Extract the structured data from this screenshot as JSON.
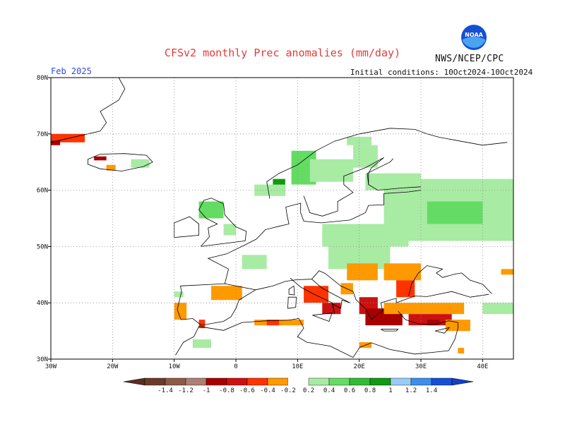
{
  "header": {
    "title": "CFSv2 monthly Prec anomalies (mm/day)",
    "agency": "NWS/NCEP/CPC",
    "logo_text": "NOAA",
    "month": "Feb 2025",
    "init": "Initial conditions: 10Oct2024-10Oct2024"
  },
  "map": {
    "lon_range": [
      -30,
      45
    ],
    "lat_range": [
      30,
      80
    ],
    "lat_ticks": [
      {
        "value": 80,
        "label": "80N"
      },
      {
        "value": 70,
        "label": "70N"
      },
      {
        "value": 60,
        "label": "60N"
      },
      {
        "value": 50,
        "label": "50N"
      },
      {
        "value": 40,
        "label": "40N"
      },
      {
        "value": 30,
        "label": "30N"
      }
    ],
    "lon_ticks": [
      {
        "value": -30,
        "label": "30W"
      },
      {
        "value": -20,
        "label": "20W"
      },
      {
        "value": -10,
        "label": "10W"
      },
      {
        "value": 0,
        "label": "0"
      },
      {
        "value": 10,
        "label": "10E"
      },
      {
        "value": 20,
        "label": "20E"
      },
      {
        "value": 30,
        "label": "30E"
      },
      {
        "value": 40,
        "label": "40E"
      }
    ],
    "grid": "dotted",
    "anomaly_regions": [
      {
        "lon": [
          -30,
          -24.5
        ],
        "lat": [
          68.5,
          70
        ],
        "level": -0.5
      },
      {
        "lon": [
          -30,
          -28.5
        ],
        "lat": [
          68,
          68.8
        ],
        "level": -0.9
      },
      {
        "lon": [
          -23,
          -21
        ],
        "lat": [
          65.3,
          66
        ],
        "level": -0.9
      },
      {
        "lon": [
          -21,
          -19.5
        ],
        "lat": [
          63.5,
          64.5
        ],
        "level": -0.3
      },
      {
        "lon": [
          -17,
          -14
        ],
        "lat": [
          64,
          65.5
        ],
        "level": 0.3
      },
      {
        "lon": [
          9,
          13
        ],
        "lat": [
          61,
          67
        ],
        "level": 0.5
      },
      {
        "lon": [
          6,
          8
        ],
        "lat": [
          59,
          62
        ],
        "level": 0.9
      },
      {
        "lon": [
          12,
          19
        ],
        "lat": [
          61.5,
          65.5
        ],
        "level": 0.3
      },
      {
        "lon": [
          19,
          23
        ],
        "lat": [
          64,
          68
        ],
        "level": 0.3
      },
      {
        "lon": [
          21,
          30
        ],
        "lat": [
          60,
          63
        ],
        "level": 0.3
      },
      {
        "lon": [
          24,
          45
        ],
        "lat": [
          51,
          62
        ],
        "level": 0.3
      },
      {
        "lon": [
          31,
          40
        ],
        "lat": [
          54,
          58
        ],
        "level": 0.5
      },
      {
        "lon": [
          -6,
          -2
        ],
        "lat": [
          55,
          58
        ],
        "level": 0.5
      },
      {
        "lon": [
          -2,
          0
        ],
        "lat": [
          52,
          54
        ],
        "level": 0.3
      },
      {
        "lon": [
          14,
          28
        ],
        "lat": [
          50,
          54
        ],
        "level": 0.3
      },
      {
        "lon": [
          15,
          25
        ],
        "lat": [
          46,
          50
        ],
        "level": 0.3
      },
      {
        "lon": [
          1,
          5
        ],
        "lat": [
          46,
          48.5
        ],
        "level": 0.3
      },
      {
        "lon": [
          -2,
          0
        ],
        "lat": [
          41.5,
          43
        ],
        "level": 0.3
      },
      {
        "lon": [
          16,
          19
        ],
        "lat": [
          63,
          64.5
        ],
        "level": 0.3
      },
      {
        "lon": [
          3,
          8
        ],
        "lat": [
          59,
          61
        ],
        "level": 0.3
      },
      {
        "lon": [
          18,
          22
        ],
        "lat": [
          68,
          69.5
        ],
        "level": 0.3
      },
      {
        "lon": [
          -4,
          1
        ],
        "lat": [
          40.5,
          43
        ],
        "level": -0.3
      },
      {
        "lon": [
          -10,
          -8
        ],
        "lat": [
          37,
          40
        ],
        "level": -0.3
      },
      {
        "lon": [
          -6,
          -5
        ],
        "lat": [
          35.5,
          37
        ],
        "level": -0.5
      },
      {
        "lon": [
          3,
          11
        ],
        "lat": [
          36,
          37
        ],
        "level": -0.3
      },
      {
        "lon": [
          5,
          7
        ],
        "lat": [
          36,
          37
        ],
        "level": -0.5
      },
      {
        "lon": [
          11,
          15
        ],
        "lat": [
          40,
          43
        ],
        "level": -0.5
      },
      {
        "lon": [
          14,
          17
        ],
        "lat": [
          38,
          40
        ],
        "level": -0.7
      },
      {
        "lon": [
          17,
          19
        ],
        "lat": [
          41.5,
          43.5
        ],
        "level": -0.3
      },
      {
        "lon": [
          18,
          23
        ],
        "lat": [
          44,
          47
        ],
        "level": -0.3
      },
      {
        "lon": [
          20,
          23
        ],
        "lat": [
          38,
          41
        ],
        "level": -0.7
      },
      {
        "lon": [
          21,
          27
        ],
        "lat": [
          36,
          39
        ],
        "level": -0.9
      },
      {
        "lon": [
          24,
          30
        ],
        "lat": [
          44,
          47
        ],
        "level": -0.3
      },
      {
        "lon": [
          26,
          29
        ],
        "lat": [
          41,
          44
        ],
        "level": -0.5
      },
      {
        "lon": [
          24,
          37
        ],
        "lat": [
          38,
          40
        ],
        "level": -0.3
      },
      {
        "lon": [
          28,
          35
        ],
        "lat": [
          36,
          38
        ],
        "level": -0.7
      },
      {
        "lon": [
          31,
          33
        ],
        "lat": [
          36,
          37
        ],
        "level": -0.9
      },
      {
        "lon": [
          34,
          38
        ],
        "lat": [
          35,
          37
        ],
        "level": -0.3
      },
      {
        "lon": [
          20,
          22
        ],
        "lat": [
          32,
          33
        ],
        "level": -0.3
      },
      {
        "lon": [
          36,
          37
        ],
        "lat": [
          31,
          32
        ],
        "level": -0.3
      },
      {
        "lon": [
          43,
          45
        ],
        "lat": [
          45,
          46
        ],
        "level": -0.3
      },
      {
        "lon": [
          40,
          45
        ],
        "lat": [
          38,
          40
        ],
        "level": 0.3
      },
      {
        "lon": [
          -7,
          -4
        ],
        "lat": [
          32,
          33.5
        ],
        "level": 0.3
      },
      {
        "lon": [
          -10,
          -8.5
        ],
        "lat": [
          41,
          42
        ],
        "level": 0.3
      }
    ]
  },
  "colorbar": {
    "labels": [
      "-1.4",
      "-1.2",
      "-1",
      "-0.8",
      "-0.6",
      "-0.4",
      "-0.2",
      "0.2",
      "0.4",
      "0.6",
      "0.8",
      "1",
      "1.2",
      "1.4"
    ],
    "colors": [
      "#6b3a2a",
      "#8e5a48",
      "#b07f73",
      "#a80000",
      "#cc1111",
      "#ff3300",
      "#ff9900",
      "#ffffff",
      "#a8eba3",
      "#64dc64",
      "#34bb34",
      "#119911",
      "#99ccf2",
      "#3d8eea",
      "#1550d4"
    ],
    "low_color": "#5a2e1f",
    "high_color": "#1240c8"
  }
}
